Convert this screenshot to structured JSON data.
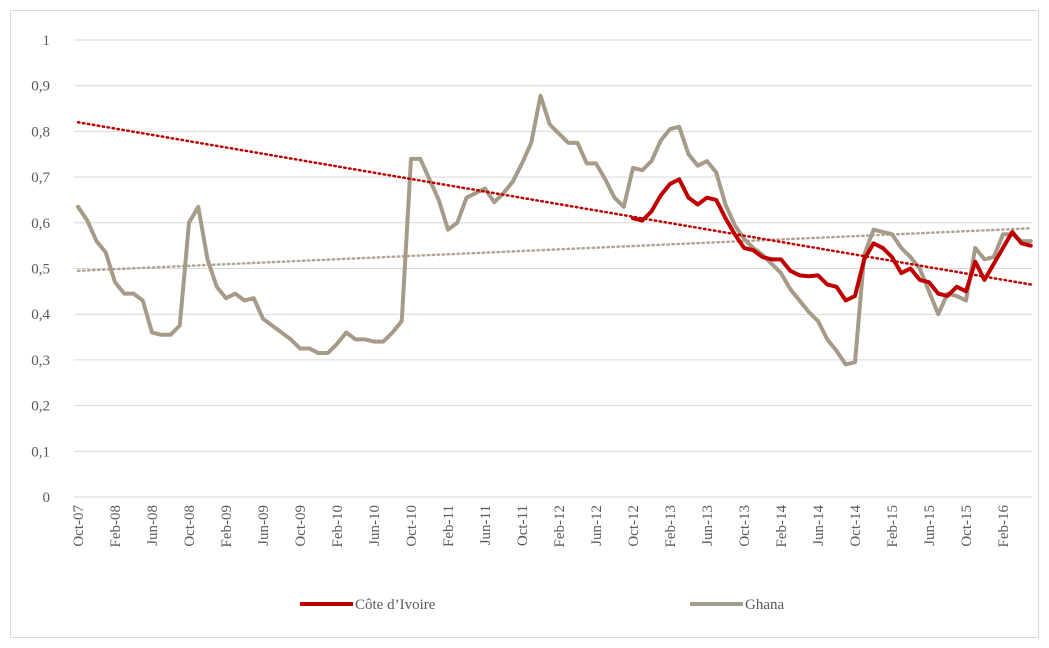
{
  "chart_data": {
    "type": "line",
    "categories": [
      "Oct-07",
      null,
      null,
      null,
      "Feb-08",
      null,
      null,
      null,
      "Jun-08",
      null,
      null,
      null,
      "Oct-08",
      null,
      null,
      null,
      "Feb-09",
      null,
      null,
      null,
      "Jun-09",
      null,
      null,
      null,
      "Oct-09",
      null,
      null,
      null,
      "Feb-10",
      null,
      null,
      null,
      "Jun-10",
      null,
      null,
      null,
      "Oct-10",
      null,
      null,
      null,
      "Feb-11",
      null,
      null,
      null,
      "Jun-11",
      null,
      null,
      null,
      "Oct-11",
      null,
      null,
      null,
      "Feb-12",
      null,
      null,
      null,
      "Jun-12",
      null,
      null,
      null,
      "Oct-12",
      null,
      null,
      null,
      "Feb-13",
      null,
      null,
      null,
      "Jun-13",
      null,
      null,
      null,
      "Oct-13",
      null,
      null,
      null,
      "Feb-14",
      null,
      null,
      null,
      "Jun-14",
      null,
      null,
      null,
      "Oct-14",
      null,
      null,
      null,
      "Feb-15",
      null,
      null,
      null,
      "Jun-15",
      null,
      null,
      null,
      "Oct-15",
      null,
      null,
      null,
      "Feb-16",
      null,
      null,
      null
    ],
    "series": [
      {
        "name": "Côte d’Ivoire",
        "color": "#c00000",
        "values": [
          null,
          null,
          null,
          null,
          null,
          null,
          null,
          null,
          null,
          null,
          null,
          null,
          null,
          null,
          null,
          null,
          null,
          null,
          null,
          null,
          null,
          null,
          null,
          null,
          null,
          null,
          null,
          null,
          null,
          null,
          null,
          null,
          null,
          null,
          null,
          null,
          null,
          null,
          null,
          null,
          null,
          null,
          null,
          null,
          null,
          null,
          null,
          null,
          null,
          null,
          null,
          null,
          null,
          null,
          null,
          null,
          null,
          null,
          null,
          null,
          0.61,
          0.605,
          0.625,
          0.66,
          0.685,
          0.695,
          0.655,
          0.64,
          0.655,
          0.65,
          0.61,
          0.575,
          0.545,
          0.54,
          0.525,
          0.52,
          0.52,
          0.495,
          0.485,
          0.483,
          0.485,
          0.465,
          0.46,
          0.43,
          0.44,
          0.52,
          0.555,
          0.545,
          0.525,
          0.49,
          0.5,
          0.475,
          0.47,
          0.445,
          0.44,
          0.46,
          0.45,
          0.515,
          0.475,
          0.51,
          0.545,
          0.58,
          0.555,
          0.55
        ],
        "trendline": {
          "color": "#c00000",
          "start": 0.82,
          "end": 0.465
        }
      },
      {
        "name": "Ghana",
        "color": "#a69b89",
        "values": [
          0.635,
          0.605,
          0.56,
          0.535,
          0.47,
          0.445,
          0.445,
          0.43,
          0.36,
          0.355,
          0.355,
          0.375,
          0.6,
          0.635,
          0.52,
          0.46,
          0.435,
          0.445,
          0.43,
          0.435,
          0.39,
          0.375,
          0.36,
          0.345,
          0.325,
          0.325,
          0.315,
          0.315,
          0.335,
          0.36,
          0.345,
          0.345,
          0.34,
          0.34,
          0.36,
          0.385,
          0.74,
          0.74,
          0.695,
          0.65,
          0.585,
          0.6,
          0.655,
          0.665,
          0.675,
          0.645,
          0.665,
          0.69,
          0.73,
          0.775,
          0.878,
          0.815,
          0.795,
          0.775,
          0.775,
          0.73,
          0.73,
          0.695,
          0.655,
          0.635,
          0.72,
          0.715,
          0.735,
          0.78,
          0.805,
          0.81,
          0.75,
          0.725,
          0.735,
          0.71,
          0.64,
          0.595,
          0.565,
          0.545,
          0.53,
          0.51,
          0.49,
          0.455,
          0.43,
          0.405,
          0.385,
          0.345,
          0.32,
          0.29,
          0.295,
          0.53,
          0.585,
          0.58,
          0.575,
          0.545,
          0.525,
          0.5,
          0.45,
          0.4,
          0.445,
          0.44,
          0.43,
          0.545,
          0.52,
          0.525,
          0.575,
          0.575,
          0.56,
          0.56
        ],
        "trendline": {
          "color": "#b0a594",
          "start": 0.495,
          "end": 0.588
        }
      }
    ],
    "ylim": [
      0,
      1
    ],
    "yticks": [
      0,
      {
        "value": 0.1,
        "label": "0,1"
      },
      {
        "value": 0.2,
        "label": "0,2"
      },
      {
        "value": 0.3,
        "label": "0,3"
      },
      {
        "value": 0.4,
        "label": "0,4"
      },
      {
        "value": 0.5,
        "label": "0,5"
      },
      {
        "value": 0.6,
        "label": "0,6"
      },
      {
        "value": 0.7,
        "label": "0,7"
      },
      {
        "value": 0.8,
        "label": "0,8"
      },
      {
        "value": 0.9,
        "label": "0,9"
      },
      1
    ],
    "grid": true,
    "legend": "bottom"
  }
}
